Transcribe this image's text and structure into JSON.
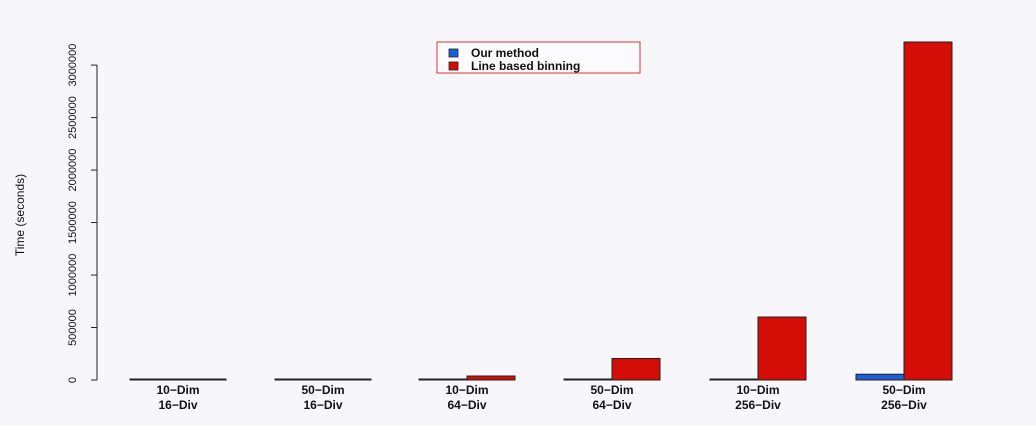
{
  "chart_data": {
    "type": "bar",
    "title": "",
    "xlabel": "",
    "ylabel": "Time (seconds)",
    "categories": [
      [
        "10−Dim",
        "16−Div"
      ],
      [
        "50−Dim",
        "16−Div"
      ],
      [
        "10−Dim",
        "64−Div"
      ],
      [
        "50−Dim",
        "64−Div"
      ],
      [
        "10−Dim",
        "256−Div"
      ],
      [
        "50−Dim",
        "256−Div"
      ]
    ],
    "series": [
      {
        "name": "Our method",
        "color": "#1f5fd6",
        "values": [
          300,
          1200,
          1500,
          6000,
          7000,
          55000
        ]
      },
      {
        "name": "Line based binning",
        "color": "#d40e06",
        "values": [
          1500,
          9000,
          38000,
          205000,
          600000,
          3220000
        ]
      }
    ],
    "ylim": [
      0,
      3220000
    ],
    "yticks": [
      0,
      500000,
      1000000,
      1500000,
      2000000,
      2500000,
      3000000
    ],
    "ytick_labels": [
      "0",
      "500000",
      "1000000",
      "1500000",
      "2000000",
      "2500000",
      "3000000"
    ],
    "legend_position": "top-center",
    "grid": false
  }
}
